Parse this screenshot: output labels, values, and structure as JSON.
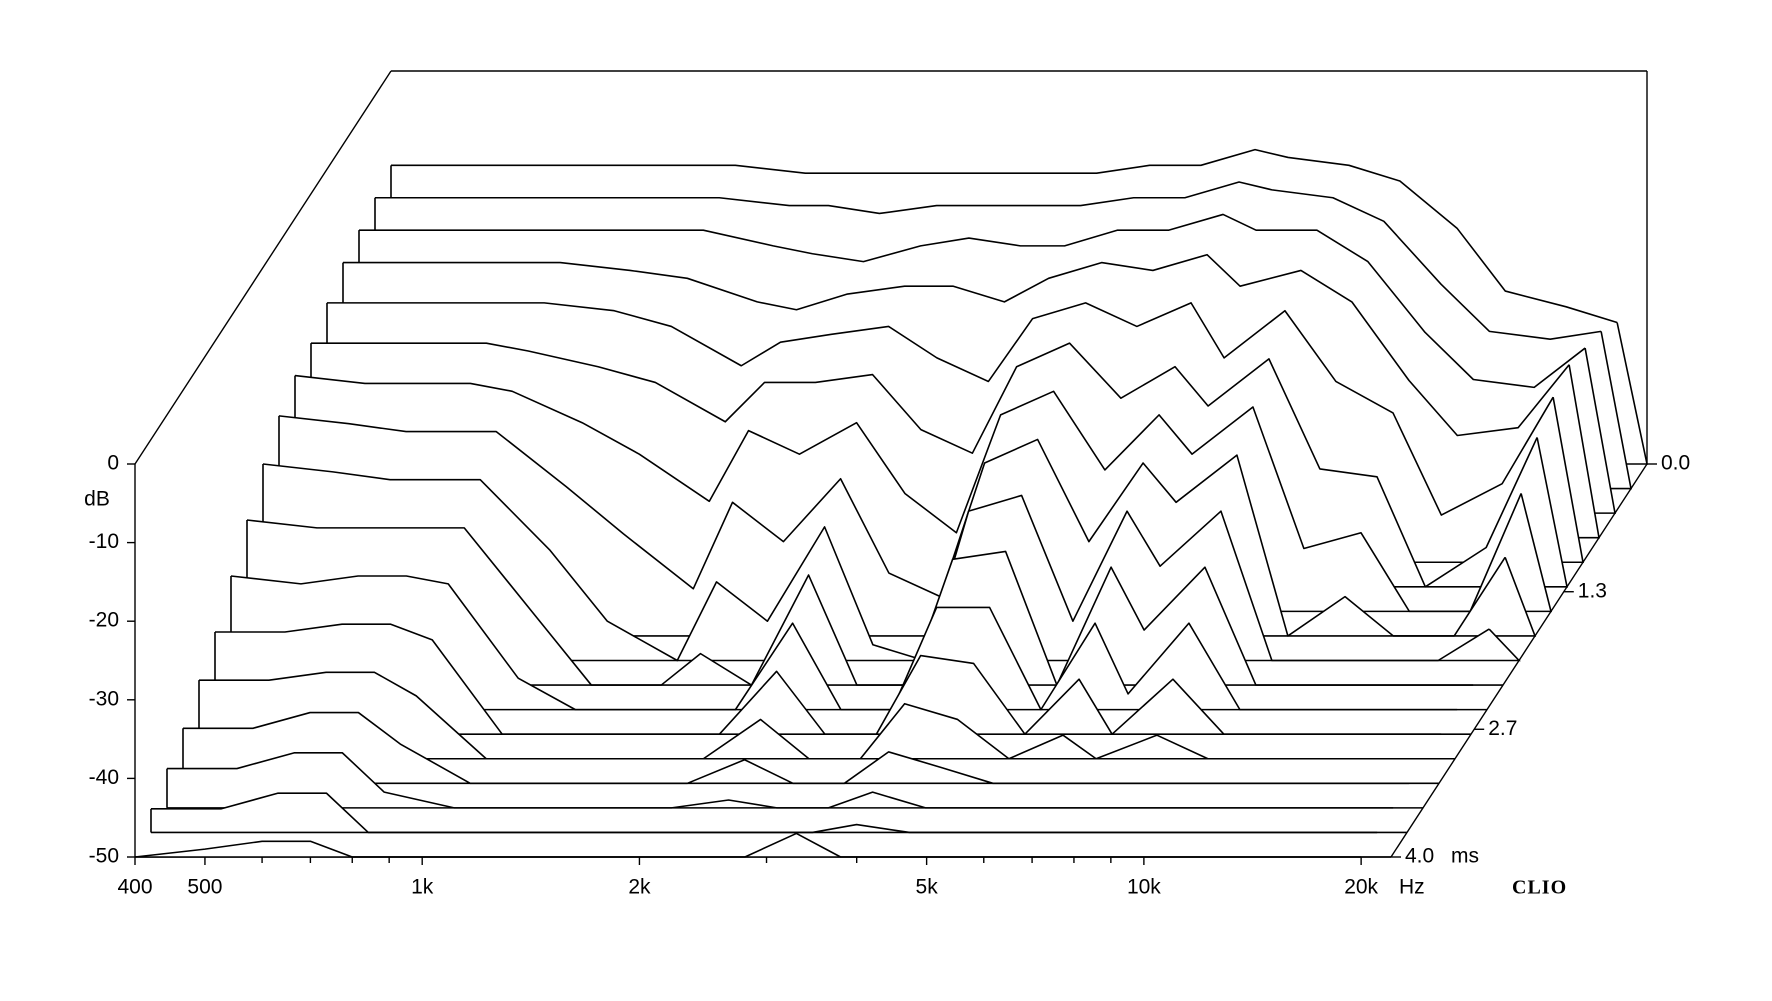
{
  "chart_data": {
    "type": "waterfall",
    "brand": "CLIO",
    "y_label": "dB",
    "x_unit": "Hz",
    "z_unit": "ms",
    "xlim": [
      400,
      22000
    ],
    "ylim": [
      -50,
      0
    ],
    "zlim": [
      0,
      4
    ],
    "log_x": true,
    "color": "#000000",
    "xticks": [
      {
        "value": 400,
        "label": "400"
      },
      {
        "value": 500,
        "label": "500"
      },
      {
        "value": 1000,
        "label": "1k"
      },
      {
        "value": 2000,
        "label": "2k"
      },
      {
        "value": 5000,
        "label": "5k"
      },
      {
        "value": 10000,
        "label": "10k"
      },
      {
        "value": 20000,
        "label": "20k"
      }
    ],
    "xminor_ticks": [
      600,
      700,
      800,
      900,
      3000,
      4000,
      6000,
      7000,
      8000,
      9000
    ],
    "yticks": [
      0,
      -10,
      -20,
      -30,
      -40,
      -50
    ],
    "zticks": [
      {
        "value": 0,
        "label": "0.0"
      },
      {
        "value": 1.3,
        "label": "1.3"
      },
      {
        "value": 2.7,
        "label": "2.7"
      },
      {
        "value": 4,
        "label": "4.0"
      }
    ],
    "x": [
      400,
      500,
      600,
      700,
      800,
      1000,
      1200,
      1500,
      1700,
      2000,
      2400,
      2800,
      3300,
      3800,
      4500,
      5300,
      6300,
      7000,
      8500,
      10000,
      12000,
      14000,
      17000,
      20000
    ],
    "z": [
      0,
      0.25,
      0.5,
      0.75,
      1,
      1.25,
      1.5,
      1.75,
      2,
      2.25,
      2.5,
      2.75,
      3,
      3.25,
      3.5,
      3.75,
      4
    ],
    "series": [
      {
        "values": [
          -12,
          -12,
          -12,
          -12,
          -12,
          -12,
          -12,
          -13,
          -13,
          -13,
          -13,
          -13,
          -13,
          -13,
          -12,
          -12,
          -10,
          -11,
          -12,
          -14,
          -20,
          -28,
          -30,
          -32
        ]
      },
      {
        "values": [
          -13,
          -13,
          -13,
          -13,
          -13,
          -13,
          -13,
          -14,
          -14,
          -15,
          -14,
          -14,
          -14,
          -14,
          -13,
          -13,
          -11,
          -12,
          -13,
          -16,
          -24,
          -30,
          -31,
          -30
        ]
      },
      {
        "values": [
          -14,
          -14,
          -14,
          -14,
          -14,
          -14,
          -14,
          -16,
          -17,
          -18,
          -16,
          -15,
          -16,
          -16,
          -14,
          -14,
          -12,
          -14,
          -14,
          -18,
          -27,
          -33,
          -34,
          -29
        ]
      },
      {
        "values": [
          -15,
          -15,
          -15,
          -15,
          -15,
          -16,
          -17,
          -20,
          -21,
          -19,
          -18,
          -18,
          -20,
          -17,
          -15,
          -16,
          -14,
          -18,
          -16,
          -20,
          -30,
          -37,
          -36,
          -28
        ]
      },
      {
        "values": [
          -17,
          -17,
          -17,
          -17,
          -17,
          -18,
          -20,
          -25,
          -22,
          -21,
          -20,
          -24,
          -27,
          -19,
          -17,
          -20,
          -17,
          -24,
          -18,
          -27,
          -31,
          -44,
          -40,
          -29
        ]
      },
      {
        "values": [
          -19,
          -19,
          -19,
          -19,
          -20,
          -22,
          -24,
          -29,
          -24,
          -24,
          -23,
          -30,
          -33,
          -22,
          -19,
          -26,
          -22,
          -27,
          -21,
          -35,
          -36,
          -50,
          -45,
          -31
        ]
      },
      {
        "values": [
          -20,
          -21,
          -21,
          -21,
          -22,
          -26,
          -30,
          -36,
          -27,
          -30,
          -26,
          -35,
          -40,
          -25,
          -22,
          -32,
          -25,
          -30,
          -24,
          -42,
          -40,
          -50,
          -50,
          -35
        ]
      },
      {
        "values": [
          -22,
          -23,
          -24,
          -24,
          -24,
          -31,
          -37,
          -44,
          -33,
          -38,
          -30,
          -42,
          -45,
          -28,
          -25,
          -38,
          -28,
          -33,
          -27,
          -50,
          -45,
          -50,
          -50,
          -40
        ]
      },
      {
        "values": [
          -25,
          -26,
          -27,
          -27,
          -27,
          -36,
          -45,
          -50,
          -40,
          -45,
          -33,
          -48,
          -50,
          -31,
          -29,
          -45,
          -31,
          -38,
          -31,
          -50,
          -50,
          -50,
          -50,
          -46
        ]
      },
      {
        "values": [
          -29,
          -30,
          -30,
          -30,
          -30,
          -41,
          -50,
          -50,
          -46,
          -50,
          -36,
          -50,
          -50,
          -34,
          -33,
          -50,
          -35,
          -43,
          -35,
          -50,
          -50,
          -50,
          -50,
          -50
        ]
      },
      {
        "values": [
          -33,
          -34,
          -33,
          -33,
          -34,
          -46,
          -50,
          -50,
          -50,
          -50,
          -39,
          -50,
          -50,
          -37,
          -37,
          -50,
          -39,
          -48,
          -39,
          -50,
          -50,
          -50,
          -50,
          -50
        ]
      },
      {
        "values": [
          -37,
          -37,
          -36,
          -36,
          -38,
          -50,
          -50,
          -50,
          -50,
          -50,
          -42,
          -50,
          -50,
          -40,
          -41,
          -50,
          -43,
          -50,
          -43,
          -50,
          -50,
          -50,
          -50,
          -50
        ]
      },
      {
        "values": [
          -40,
          -40,
          -39,
          -39,
          -42,
          -50,
          -50,
          -50,
          -50,
          -50,
          -45,
          -50,
          -50,
          -43,
          -45,
          -50,
          -47,
          -50,
          -47,
          -50,
          -50,
          -50,
          -50,
          -50
        ]
      },
      {
        "values": [
          -43,
          -43,
          -41,
          -41,
          -45,
          -50,
          -50,
          -50,
          -50,
          -50,
          -47,
          -50,
          -50,
          -46,
          -48,
          -50,
          -50,
          -50,
          -50,
          -50,
          -50,
          -50,
          -50,
          -50
        ]
      },
      {
        "values": [
          -45,
          -45,
          -43,
          -43,
          -48,
          -50,
          -50,
          -50,
          -50,
          -50,
          -49,
          -50,
          -50,
          -48,
          -50,
          -50,
          -50,
          -50,
          -50,
          -50,
          -50,
          -50,
          -50,
          -50
        ]
      },
      {
        "values": [
          -47,
          -47,
          -45,
          -45,
          -50,
          -50,
          -50,
          -50,
          -50,
          -50,
          -50,
          -50,
          -50,
          -49,
          -50,
          -50,
          -50,
          -50,
          -50,
          -50,
          -50,
          -50,
          -50,
          -50
        ]
      },
      {
        "values": [
          -50,
          -49,
          -48,
          -48,
          -50,
          -50,
          -50,
          -50,
          -50,
          -50,
          -50,
          -50,
          -47,
          -50,
          -50,
          -50,
          -50,
          -50,
          -50,
          -50,
          -50,
          -50,
          -50,
          -50
        ]
      }
    ]
  }
}
